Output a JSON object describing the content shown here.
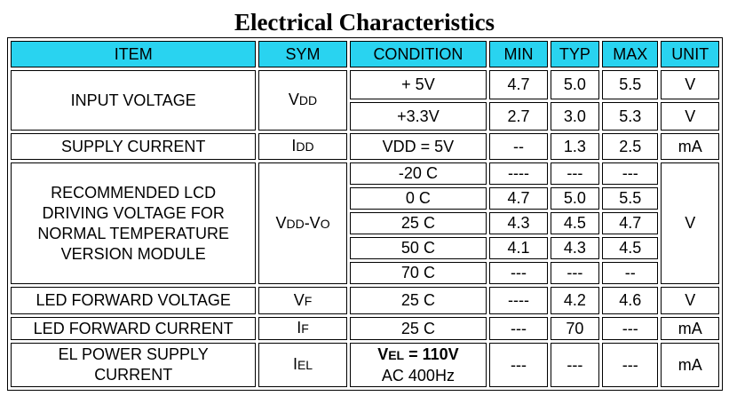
{
  "title": "Electrical Characteristics",
  "table": {
    "header": [
      "ITEM",
      "SYM",
      "CONDITION",
      "MIN",
      "TYP",
      "MAX",
      "UNIT"
    ],
    "groups": [
      {
        "item": [
          "INPUT VOLTAGE"
        ],
        "sym": [
          {
            "t": "V"
          },
          {
            "s": "DD"
          }
        ],
        "rows": [
          {
            "condition": [
              [
                {
                  "t": "+ 5V"
                }
              ]
            ],
            "min": "4.7",
            "typ": "5.0",
            "max": "5.5",
            "unit": "V"
          },
          {
            "condition": [
              [
                {
                  "t": "+3.3V"
                }
              ]
            ],
            "min": "2.7",
            "typ": "3.0",
            "max": "5.3",
            "unit": "V"
          }
        ]
      },
      {
        "item": [
          "SUPPLY CURRENT"
        ],
        "sym": [
          {
            "t": "I"
          },
          {
            "s": "DD"
          }
        ],
        "rows": [
          {
            "condition": [
              [
                {
                  "t": "VDD = 5V"
                }
              ]
            ],
            "min": "--",
            "typ": "1.3",
            "max": "2.5",
            "unit": "mA"
          }
        ]
      },
      {
        "item": [
          "RECOMMENDED LCD",
          "DRIVING VOLTAGE FOR",
          "NORMAL TEMPERATURE",
          "VERSION MODULE"
        ],
        "sym": [
          {
            "t": "V"
          },
          {
            "s": "DD"
          },
          {
            "t": "-V"
          },
          {
            "s": "O"
          }
        ],
        "unit": "V",
        "rows": [
          {
            "condition": [
              [
                {
                  "t": "-20 C"
                }
              ]
            ],
            "min": "----",
            "typ": "---",
            "max": "---"
          },
          {
            "condition": [
              [
                {
                  "t": "0 C"
                }
              ]
            ],
            "min": "4.7",
            "typ": "5.0",
            "max": "5.5"
          },
          {
            "condition": [
              [
                {
                  "t": "25 C"
                }
              ]
            ],
            "min": "4.3",
            "typ": "4.5",
            "max": "4.7"
          },
          {
            "condition": [
              [
                {
                  "t": "50 C"
                }
              ]
            ],
            "min": "4.1",
            "typ": "4.3",
            "max": "4.5"
          },
          {
            "condition": [
              [
                {
                  "t": "70 C"
                }
              ]
            ],
            "min": "---",
            "typ": "---",
            "max": "--"
          }
        ]
      },
      {
        "item": [
          "LED FORWARD VOLTAGE"
        ],
        "sym": [
          {
            "t": "V"
          },
          {
            "s": "F"
          }
        ],
        "rows": [
          {
            "condition": [
              [
                {
                  "t": "25 C"
                }
              ]
            ],
            "min": "----",
            "typ": "4.2",
            "max": "4.6",
            "unit": "V"
          }
        ]
      },
      {
        "item": [
          "LED FORWARD CURRENT"
        ],
        "sym": [
          {
            "t": "I"
          },
          {
            "s": "F"
          }
        ],
        "rows": [
          {
            "condition": [
              [
                {
                  "t": "25 C"
                }
              ]
            ],
            "min": "---",
            "typ": "70",
            "max": "---",
            "unit": "mA"
          }
        ]
      },
      {
        "item": [
          "EL POWER SUPPLY",
          "CURRENT"
        ],
        "sym": [
          {
            "t": "I"
          },
          {
            "s": "EL"
          }
        ],
        "rows": [
          {
            "condition": [
              [
                {
                  "t": "V"
                },
                {
                  "s": "EL"
                },
                {
                  "t": " = 110V"
                }
              ],
              [
                {
                  "t": "AC 400Hz"
                }
              ]
            ],
            "min": "---",
            "typ": "---",
            "max": "---",
            "unit": "mA"
          }
        ]
      }
    ]
  }
}
